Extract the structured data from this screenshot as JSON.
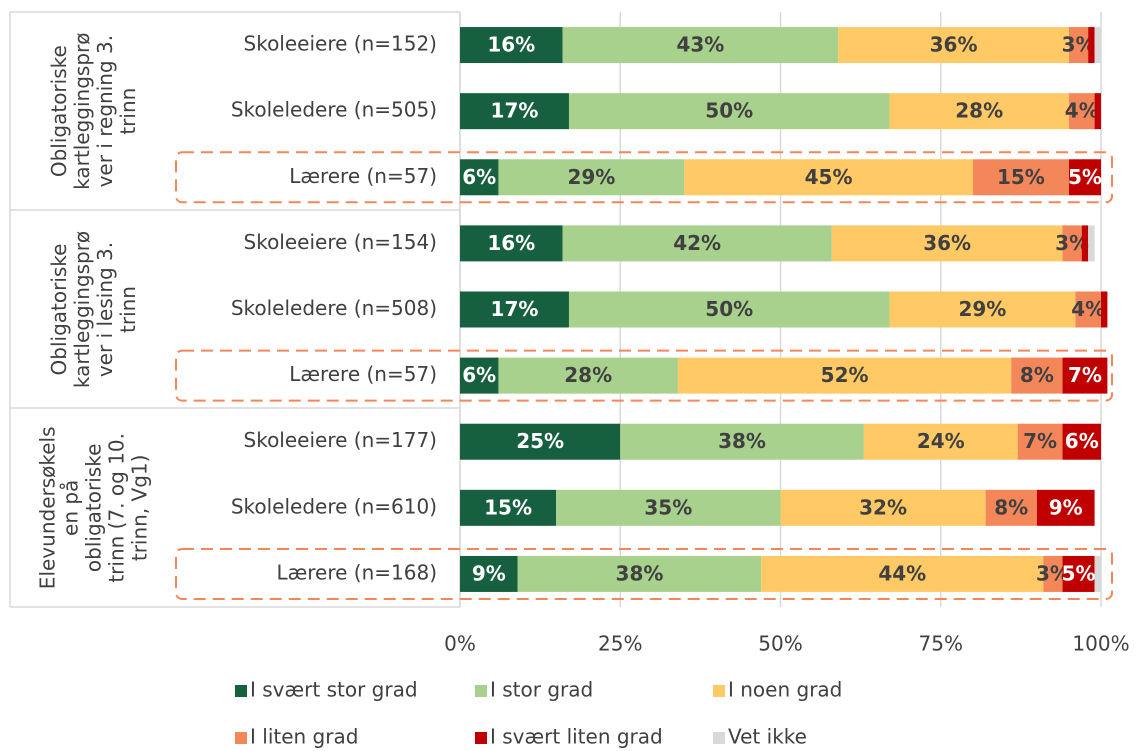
{
  "chart_data": {
    "type": "stacked-bar-horizontal",
    "group_labels": [
      [
        "Obligatoriske",
        "kartleggingsprø",
        "ver i regning 3.",
        "trinn"
      ],
      [
        "Obligatoriske",
        "kartleggingsprø",
        "ver i lesing 3.",
        "trinn"
      ],
      [
        "Elevundersøkels",
        "en på",
        "obligatoriske",
        "trinn (7. og 10.",
        "trinn, Vg1)"
      ]
    ],
    "categories": [
      "Skoleeiere (n=152)",
      "Skoleledere (n=505)",
      "Lærere (n=57)",
      "Skoleeiere (n=154)",
      "Skoleledere (n=508)",
      "Lærere (n=57)",
      "Skoleeiere (n=177)",
      "Skoleledere (n=610)",
      "Lærere (n=168)"
    ],
    "series": [
      {
        "name": "I svært stor grad",
        "color": "#17603f",
        "values": [
          16,
          17,
          6,
          16,
          17,
          6,
          25,
          15,
          9
        ],
        "value_labels": [
          "16%",
          "17%",
          "6%",
          "16%",
          "17%",
          "6%",
          "25%",
          "15%",
          "9%"
        ]
      },
      {
        "name": "I stor grad",
        "color": "#a9d18e",
        "values": [
          43,
          50,
          29,
          42,
          50,
          28,
          38,
          35,
          38
        ],
        "value_labels": [
          "43%",
          "50%",
          "29%",
          "42%",
          "50%",
          "28%",
          "38%",
          "35%",
          "38%"
        ]
      },
      {
        "name": "I noen grad",
        "color": "#ffc966",
        "values": [
          36,
          28,
          45,
          36,
          29,
          52,
          24,
          32,
          44
        ],
        "value_labels": [
          "36%",
          "28%",
          "45%",
          "36%",
          "29%",
          "52%",
          "24%",
          "32%",
          "44%"
        ]
      },
      {
        "name": "I liten grad",
        "color": "#f4875a",
        "values": [
          3,
          4,
          15,
          3,
          4,
          8,
          7,
          8,
          3
        ],
        "value_labels": [
          "3%",
          "4%",
          "15%",
          "3%",
          "4%",
          "8%",
          "7%",
          "8%",
          "3%"
        ]
      },
      {
        "name": "I svært liten grad",
        "color": "#c00000",
        "values": [
          1,
          1,
          5,
          1,
          1,
          7,
          6,
          9,
          5
        ],
        "value_labels": [
          null,
          null,
          "5%",
          null,
          null,
          "7%",
          "6%",
          "9%",
          "5%"
        ]
      },
      {
        "name": "Vet ikke",
        "color": "#d9d9d9",
        "values": [
          1,
          0,
          0,
          1,
          0,
          0,
          0,
          0,
          1
        ]
      }
    ],
    "xlim": [
      0,
      100
    ],
    "xticks": [
      {
        "value": 0,
        "label": "0%"
      },
      {
        "value": 25,
        "label": "25%"
      },
      {
        "value": 50,
        "label": "50%"
      },
      {
        "value": 75,
        "label": "75%"
      },
      {
        "value": 100,
        "label": "100%"
      }
    ],
    "grid": true
  }
}
